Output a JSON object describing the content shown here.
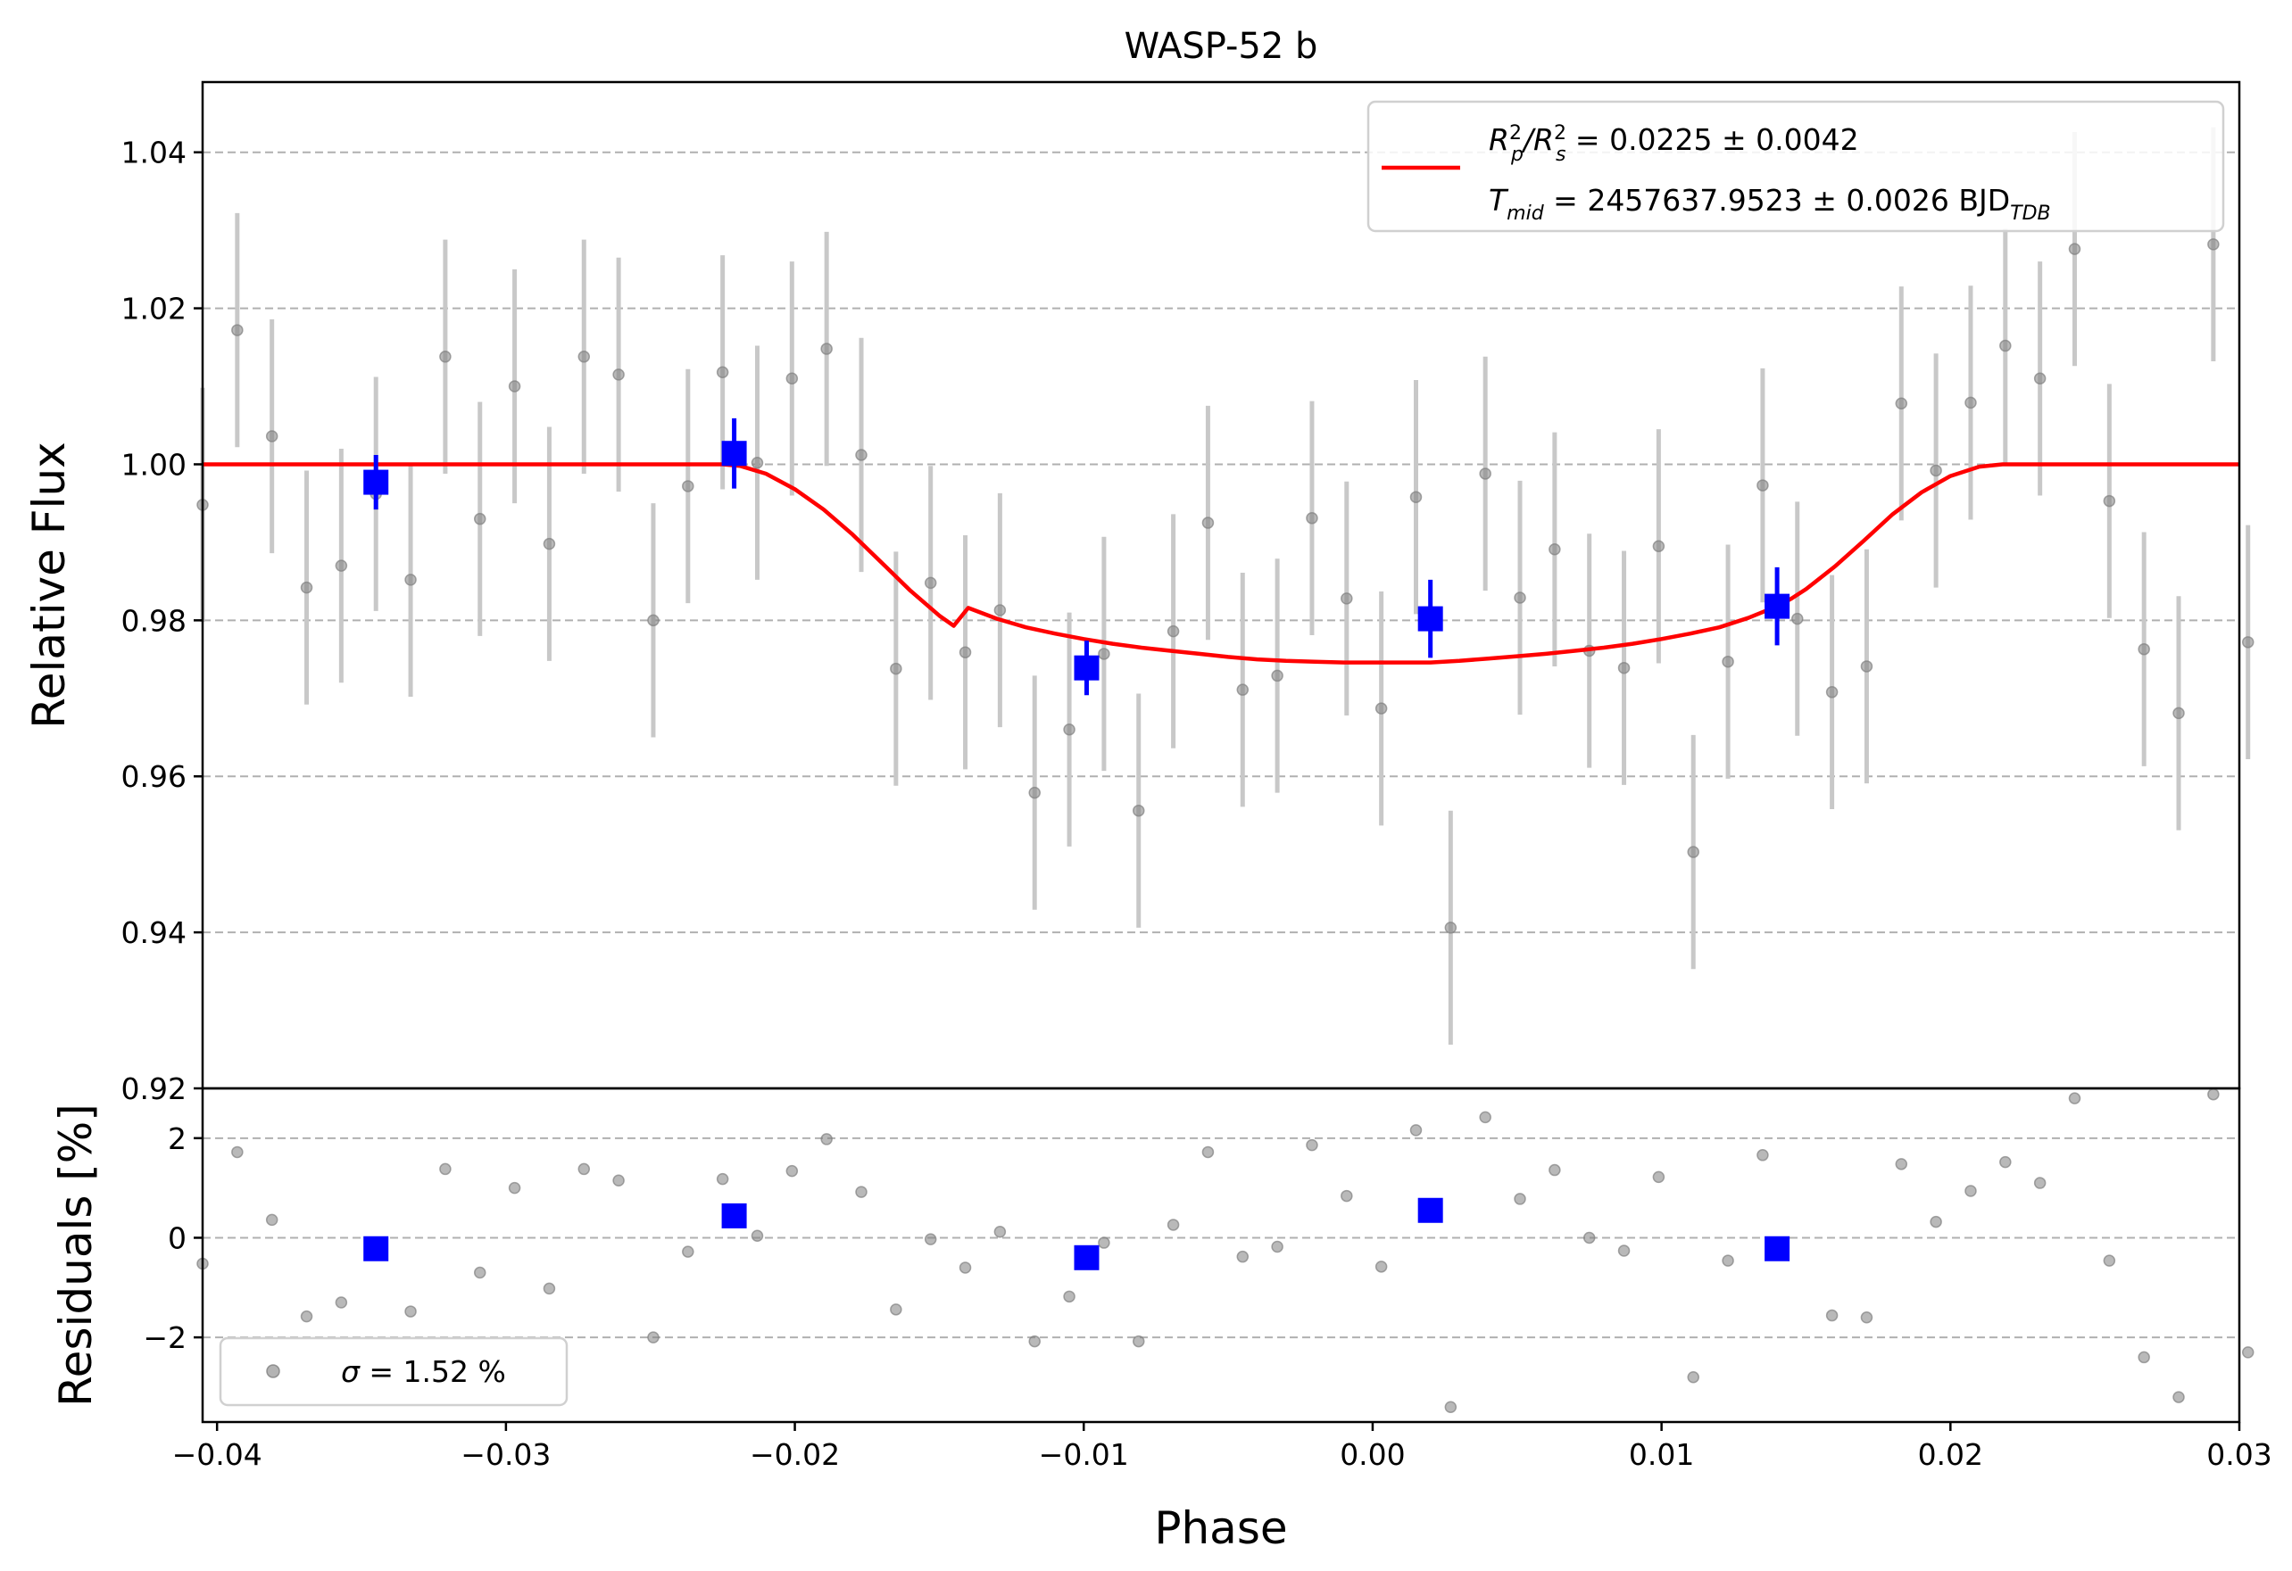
{
  "colors": {
    "data_point": "#808080",
    "error_bar": "#c8c8c8",
    "binned": "#0000ff",
    "model": "#ff0000",
    "grid": "#b0b0b0",
    "legend_border": "#d0d0d0"
  },
  "chart_data": [
    {
      "type": "scatter",
      "title": "WASP-52 b",
      "xlabel": "",
      "ylabel": "Relative Flux",
      "xlim": [
        -0.0405,
        0.03
      ],
      "ylim": [
        0.92,
        1.049
      ],
      "yticks": [
        0.92,
        0.94,
        0.96,
        0.98,
        1.0,
        1.02,
        1.04
      ],
      "ytick_labels": [
        "0.92",
        "0.94",
        "0.96",
        "0.98",
        "1.00",
        "1.02",
        "1.04"
      ],
      "grid": "y-dashed",
      "legend_position": "top-right",
      "legend": {
        "line1": {
          "a": "R",
          "a_sup": "2",
          "a_sub": "p",
          "b": "/R",
          "b_sup": "2",
          "b_sub": "s",
          "value": " = 0.0225 ± 0.0042"
        },
        "line2": {
          "a": "T",
          "a_sub": "mid",
          "value": " = 2457637.9523 ± 0.0026 BJD",
          "value_sub": "TDB"
        }
      },
      "series": [
        {
          "kind": "data",
          "x": [
            -0.0405,
            -0.0393,
            -0.0381,
            -0.0369,
            -0.0357,
            -0.0345,
            -0.0333,
            -0.0321,
            -0.0309,
            -0.0297,
            -0.0285,
            -0.0273,
            -0.0261,
            -0.0249,
            -0.0237,
            -0.0225,
            -0.0213,
            -0.0201,
            -0.0189,
            -0.0177,
            -0.0165,
            -0.0153,
            -0.0141,
            -0.0129,
            -0.0117,
            -0.0105,
            -0.0093,
            -0.0081,
            -0.0069,
            -0.0057,
            -0.0045,
            -0.0033,
            -0.0021,
            -0.0009,
            0.0003,
            0.0015,
            0.0027,
            0.0039,
            0.0051,
            0.0063,
            0.0075,
            0.0087,
            0.0099,
            0.0111,
            0.0123,
            0.0135,
            0.0147,
            0.0159,
            0.0171,
            0.0183,
            0.0195,
            0.0207,
            0.0219,
            0.0231,
            0.0243,
            0.0255,
            0.0267,
            0.0279,
            0.0291,
            0.0303
          ],
          "y": [
            0.9948,
            1.0172,
            1.0036,
            0.9842,
            0.987,
            0.9962,
            0.9852,
            1.0138,
            0.993,
            1.01,
            0.9898,
            1.0138,
            1.0115,
            0.98,
            0.9972,
            1.0118,
            1.0002,
            1.011,
            1.0148,
            1.0012,
            0.9738,
            0.9848,
            0.9759,
            0.9813,
            0.9579,
            0.966,
            0.9757,
            0.9556,
            0.9786,
            0.9925,
            0.9711,
            0.9729,
            0.9931,
            0.9828,
            0.9687,
            0.9958,
            0.9406,
            0.9988,
            0.9829,
            0.9891,
            0.9761,
            0.9739,
            0.9895,
            0.9503,
            0.9747,
            0.9973,
            0.9802,
            0.9708,
            0.9741,
            1.0078,
            0.9992,
            1.0079,
            1.0152,
            1.011,
            1.0276,
            0.9953,
            0.9763,
            0.9681,
            1.0282,
            0.9772
          ],
          "yerr": 0.015
        },
        {
          "kind": "binned",
          "x": [
            -0.0345,
            -0.0221,
            -0.0099,
            0.002,
            0.014
          ],
          "y": [
            0.9977,
            1.0014,
            0.9739,
            0.9802,
            0.9818
          ],
          "yerr": [
            0.0035,
            0.0045,
            0.0035,
            0.005,
            0.005
          ]
        },
        {
          "kind": "model",
          "x": [
            -0.0405,
            -0.0225,
            -0.0219,
            -0.021,
            -0.02,
            -0.019,
            -0.018,
            -0.017,
            -0.016,
            -0.015,
            -0.0145,
            -0.014,
            -0.013,
            -0.012,
            -0.011,
            -0.01,
            -0.009,
            -0.008,
            -0.007,
            -0.006,
            -0.005,
            -0.004,
            -0.003,
            -0.002,
            -0.001,
            0.0,
            0.001,
            0.002,
            0.003,
            0.004,
            0.005,
            0.006,
            0.007,
            0.008,
            0.009,
            0.01,
            0.011,
            0.012,
            0.013,
            0.014,
            0.0145,
            0.015,
            0.016,
            0.017,
            0.018,
            0.019,
            0.02,
            0.021,
            0.0218,
            0.0225,
            0.03
          ],
          "y": [
            1.0,
            1.0,
            0.9998,
            0.9988,
            0.9968,
            0.9942,
            0.991,
            0.9874,
            0.9838,
            0.9806,
            0.9793,
            0.9816,
            0.9802,
            0.9791,
            0.9783,
            0.9776,
            0.977,
            0.9765,
            0.9761,
            0.9757,
            0.9753,
            0.975,
            0.9748,
            0.9747,
            0.9746,
            0.9746,
            0.9746,
            0.9746,
            0.9748,
            0.9751,
            0.9754,
            0.9757,
            0.9761,
            0.9765,
            0.977,
            0.9776,
            0.9783,
            0.9791,
            0.9803,
            0.9818,
            0.9828,
            0.984,
            0.9869,
            0.9902,
            0.9936,
            0.9964,
            0.9985,
            0.9997,
            1.0,
            1.0,
            1.0
          ]
        }
      ]
    },
    {
      "type": "scatter",
      "title": "",
      "xlabel": "Phase",
      "ylabel": "Residuals [%]",
      "xlim": [
        -0.0405,
        0.03
      ],
      "ylim": [
        -3.7,
        3.0
      ],
      "yticks": [
        -2,
        0,
        2
      ],
      "ytick_labels": [
        "−2",
        "0",
        "2"
      ],
      "xticks": [
        -0.04,
        -0.03,
        -0.02,
        -0.01,
        0.0,
        0.01,
        0.02,
        0.03
      ],
      "xtick_labels": [
        "−0.04",
        "−0.03",
        "−0.02",
        "−0.01",
        "0.00",
        "0.01",
        "0.02",
        "0.03"
      ],
      "grid": "y-dashed",
      "legend_position": "bottom-left",
      "legend": {
        "symbol": "σ",
        "value": " = 1.52 %"
      },
      "series": [
        {
          "kind": "data",
          "x": [
            -0.0405,
            -0.0393,
            -0.0381,
            -0.0369,
            -0.0357,
            -0.0333,
            -0.0321,
            -0.0309,
            -0.0297,
            -0.0285,
            -0.0273,
            -0.0261,
            -0.0249,
            -0.0237,
            -0.0225,
            -0.0213,
            -0.0201,
            -0.0189,
            -0.0177,
            -0.0165,
            -0.0153,
            -0.0141,
            -0.0129,
            -0.0117,
            -0.0105,
            -0.0093,
            -0.0081,
            -0.0069,
            -0.0057,
            -0.0045,
            -0.0033,
            -0.0021,
            -0.0009,
            0.0003,
            0.0015,
            0.0027,
            0.0039,
            0.0051,
            0.0063,
            0.0075,
            0.0087,
            0.0099,
            0.0111,
            0.0123,
            0.0135,
            0.0159,
            0.0171,
            0.0183,
            0.0195,
            0.0207,
            0.0219,
            0.0231,
            0.0243,
            0.0255,
            0.0267,
            0.0279,
            0.0291,
            0.0303
          ],
          "y": [
            -0.52,
            1.72,
            0.36,
            -1.58,
            -1.3,
            -1.48,
            1.38,
            -0.7,
            1.0,
            -1.02,
            1.38,
            1.15,
            -2.0,
            -0.28,
            1.18,
            0.04,
            1.34,
            1.98,
            0.92,
            -1.44,
            -0.03,
            -0.6,
            0.12,
            -2.08,
            -1.18,
            -0.1,
            -2.08,
            0.26,
            1.72,
            -0.38,
            -0.18,
            1.86,
            0.84,
            -0.58,
            2.16,
            -3.4,
            2.42,
            0.78,
            1.36,
            0.0,
            -0.26,
            1.22,
            -2.8,
            -0.46,
            1.66,
            -1.56,
            -1.6,
            1.48,
            0.32,
            0.94,
            1.52,
            1.1,
            2.8,
            -0.46,
            -2.4,
            -3.2,
            2.88,
            -2.3
          ]
        },
        {
          "kind": "binned",
          "x": [
            -0.0345,
            -0.0221,
            -0.0099,
            0.002,
            0.014
          ],
          "y": [
            -0.22,
            0.44,
            -0.4,
            0.55,
            -0.22
          ]
        }
      ]
    }
  ]
}
